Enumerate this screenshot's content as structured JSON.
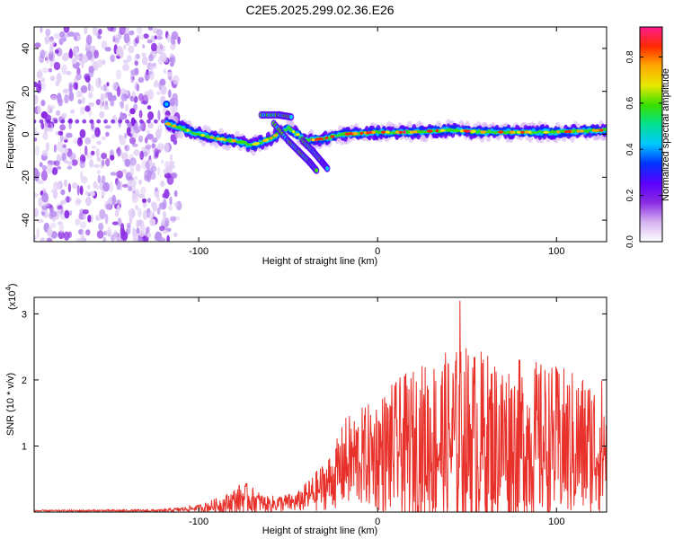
{
  "figure": {
    "title": "C2E5.2025.299.02.36.E26"
  },
  "chart_data": [
    {
      "type": "heatmap",
      "name": "spectrogram",
      "xlabel": "Height of straight line (km)",
      "ylabel": "Frequency (Hz)",
      "xlim": [
        -192,
        128
      ],
      "ylim": [
        -50,
        50
      ],
      "xticks": [
        -100,
        0,
        100
      ],
      "xtick_labels": [
        "-100",
        "0",
        "100"
      ],
      "yticks": [
        -40,
        -20,
        0,
        20,
        40
      ],
      "ytick_labels": [
        "-40",
        "-20",
        "0",
        "20",
        "40"
      ],
      "noise_region_x": [
        -192,
        -111
      ],
      "ridge": [
        {
          "x": -118,
          "f": 5
        },
        {
          "x": -110,
          "f": 3
        },
        {
          "x": -100,
          "f": 0
        },
        {
          "x": -90,
          "f": -2
        },
        {
          "x": -80,
          "f": -3
        },
        {
          "x": -70,
          "f": -5
        },
        {
          "x": -60,
          "f": -2
        },
        {
          "x": -50,
          "f": 3
        },
        {
          "x": -40,
          "f": -3
        },
        {
          "x": -30,
          "f": -2
        },
        {
          "x": -20,
          "f": 0
        },
        {
          "x": 0,
          "f": 1
        },
        {
          "x": 20,
          "f": 1
        },
        {
          "x": 40,
          "f": 2
        },
        {
          "x": 60,
          "f": 1
        },
        {
          "x": 80,
          "f": 1
        },
        {
          "x": 100,
          "f": 1
        },
        {
          "x": 128,
          "f": 2
        }
      ],
      "branches": [
        {
          "points": [
            [
              -58,
              5
            ],
            [
              -50,
              -3
            ],
            [
              -44,
              -8
            ],
            [
              -38,
              -13
            ],
            [
              -34,
              -17
            ]
          ]
        },
        {
          "points": [
            [
              -42,
              -3
            ],
            [
              -36,
              -8
            ],
            [
              -31,
              -13
            ],
            [
              -28,
              -16
            ]
          ]
        },
        {
          "points": [
            [
              -65,
              9
            ],
            [
              -55,
              9
            ],
            [
              -48,
              8
            ]
          ]
        }
      ],
      "colorbar": {
        "label": "Normalized spectral amplitude",
        "range": [
          0,
          0.93
        ],
        "ticks": [
          0.0,
          0.2,
          0.4,
          0.6,
          0.8
        ],
        "tick_labels": [
          "0.0",
          "0.2",
          "0.4",
          "0.6",
          "0.8"
        ],
        "colors": [
          "#ffffff",
          "#d6b4f0",
          "#8a2be2",
          "#5a00ff",
          "#0033ff",
          "#00c8ff",
          "#00e090",
          "#38e000",
          "#e8e800",
          "#ffaa00",
          "#ff2a00",
          "#ff1a8c"
        ]
      }
    },
    {
      "type": "line",
      "name": "snr",
      "xlabel": "Height of straight line (km)",
      "ylabel": "SNR (10 * v/v)",
      "scale_label": "(x10",
      "scale_exponent": "4",
      "scale_suffix": ")",
      "xlim": [
        -192,
        128
      ],
      "ylim": [
        0,
        3.25
      ],
      "xticks": [
        -100,
        0,
        100
      ],
      "xtick_labels": [
        "-100",
        "0",
        "100"
      ],
      "yticks": [
        1,
        2,
        3
      ],
      "ytick_labels": [
        "1",
        "2",
        "3"
      ],
      "series_color": "#e8312a",
      "envelope": [
        {
          "x": -192,
          "mean": 0.02,
          "amp": 0.01
        },
        {
          "x": -120,
          "mean": 0.02,
          "amp": 0.02
        },
        {
          "x": -100,
          "mean": 0.06,
          "amp": 0.05
        },
        {
          "x": -85,
          "mean": 0.12,
          "amp": 0.15
        },
        {
          "x": -75,
          "mean": 0.22,
          "amp": 0.25
        },
        {
          "x": -62,
          "mean": 0.12,
          "amp": 0.12
        },
        {
          "x": -45,
          "mean": 0.15,
          "amp": 0.15
        },
        {
          "x": -35,
          "mean": 0.3,
          "amp": 0.3
        },
        {
          "x": -25,
          "mean": 0.5,
          "amp": 0.45
        },
        {
          "x": -18,
          "mean": 0.75,
          "amp": 0.7
        },
        {
          "x": -5,
          "mean": 0.85,
          "amp": 0.8
        },
        {
          "x": 10,
          "mean": 0.95,
          "amp": 1.05
        },
        {
          "x": 30,
          "mean": 1.05,
          "amp": 1.3
        },
        {
          "x": 50,
          "mean": 1.1,
          "amp": 1.45
        },
        {
          "x": 70,
          "mean": 1.05,
          "amp": 1.3
        },
        {
          "x": 90,
          "mean": 1.05,
          "amp": 1.25
        },
        {
          "x": 110,
          "mean": 1.0,
          "amp": 1.15
        },
        {
          "x": 128,
          "mean": 0.95,
          "amp": 1.1
        }
      ],
      "peak": {
        "x": 46,
        "y": 3.2
      }
    }
  ]
}
